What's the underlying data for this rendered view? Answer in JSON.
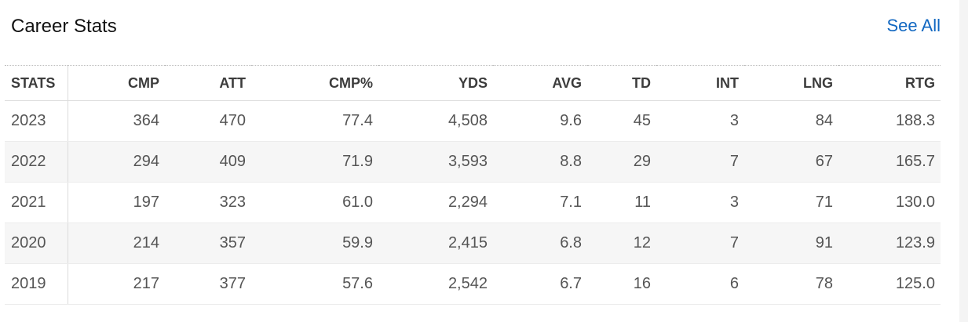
{
  "header": {
    "title": "Career Stats",
    "see_all_label": "See All"
  },
  "table": {
    "columns": [
      "STATS",
      "CMP",
      "ATT",
      "CMP%",
      "YDS",
      "AVG",
      "TD",
      "INT",
      "LNG",
      "RTG"
    ],
    "rows": [
      [
        "2023",
        "364",
        "470",
        "77.4",
        "4,508",
        "9.6",
        "45",
        "3",
        "84",
        "188.3"
      ],
      [
        "2022",
        "294",
        "409",
        "71.9",
        "3,593",
        "8.8",
        "29",
        "7",
        "67",
        "165.7"
      ],
      [
        "2021",
        "197",
        "323",
        "61.0",
        "2,294",
        "7.1",
        "11",
        "3",
        "71",
        "130.0"
      ],
      [
        "2020",
        "214",
        "357",
        "59.9",
        "2,415",
        "6.8",
        "12",
        "7",
        "91",
        "123.9"
      ],
      [
        "2019",
        "217",
        "377",
        "57.6",
        "2,542",
        "6.7",
        "16",
        "6",
        "78",
        "125.0"
      ]
    ]
  },
  "colors": {
    "link": "#1167c1",
    "row_alt": "#f6f6f6"
  }
}
